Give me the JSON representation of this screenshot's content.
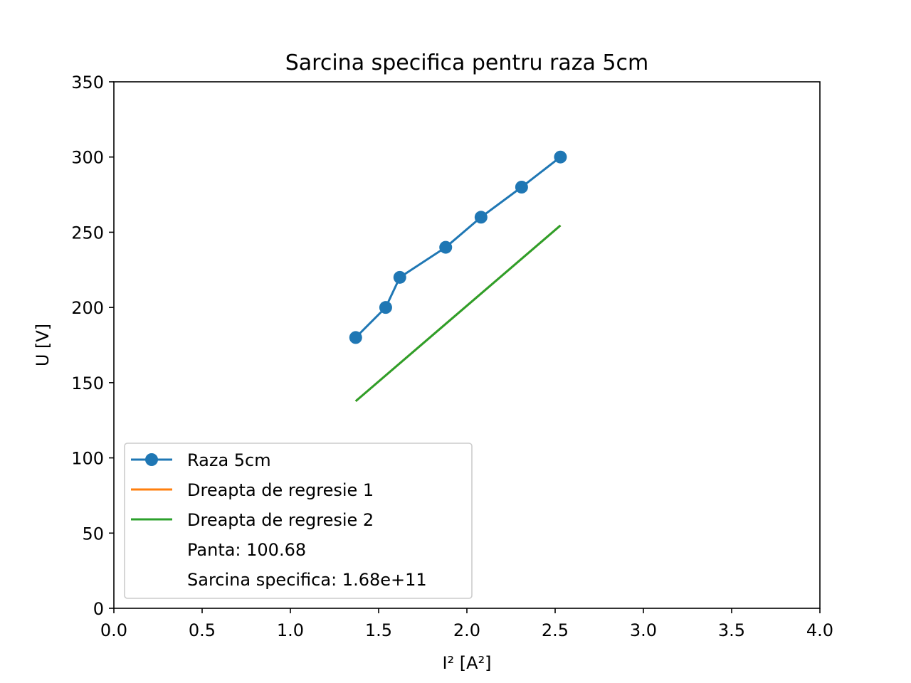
{
  "chart_data": {
    "type": "line",
    "title": "Sarcina specifica pentru raza 5cm",
    "xlabel": "I² [A²]",
    "ylabel": "U [V]",
    "xlim": [
      0,
      4
    ],
    "ylim": [
      0,
      350
    ],
    "xticks": [
      0.0,
      0.5,
      1.0,
      1.5,
      2.0,
      2.5,
      3.0,
      3.5,
      4.0
    ],
    "xtick_labels": [
      "0.0",
      "0.5",
      "1.0",
      "1.5",
      "2.0",
      "2.5",
      "3.0",
      "3.5",
      "4.0"
    ],
    "yticks": [
      0,
      50,
      100,
      150,
      200,
      250,
      300,
      350
    ],
    "ytick_labels": [
      "0",
      "50",
      "100",
      "150",
      "200",
      "250",
      "300",
      "350"
    ],
    "grid": false,
    "legend_position": "lower-left",
    "series": [
      {
        "name": "Raza 5cm",
        "color": "#1f77b4",
        "marker": "circle",
        "x": [
          1.37,
          1.54,
          1.62,
          1.88,
          2.08,
          2.31,
          2.53
        ],
        "y": [
          180,
          200,
          220,
          240,
          260,
          280,
          300
        ]
      },
      {
        "name": "Dreapta de regresie 1",
        "color": "#ff7f0e",
        "marker": "none",
        "x": [
          1.37,
          2.53
        ],
        "y": [
          137.7,
          254.5
        ]
      },
      {
        "name": "Dreapta de regresie 2",
        "color": "#2ca02c",
        "marker": "none",
        "x": [
          1.37,
          2.53
        ],
        "y": [
          137.7,
          254.5
        ]
      }
    ],
    "legend_extra": [
      "Panta: 100.68",
      "Sarcina specifica: 1.68e+11"
    ]
  }
}
